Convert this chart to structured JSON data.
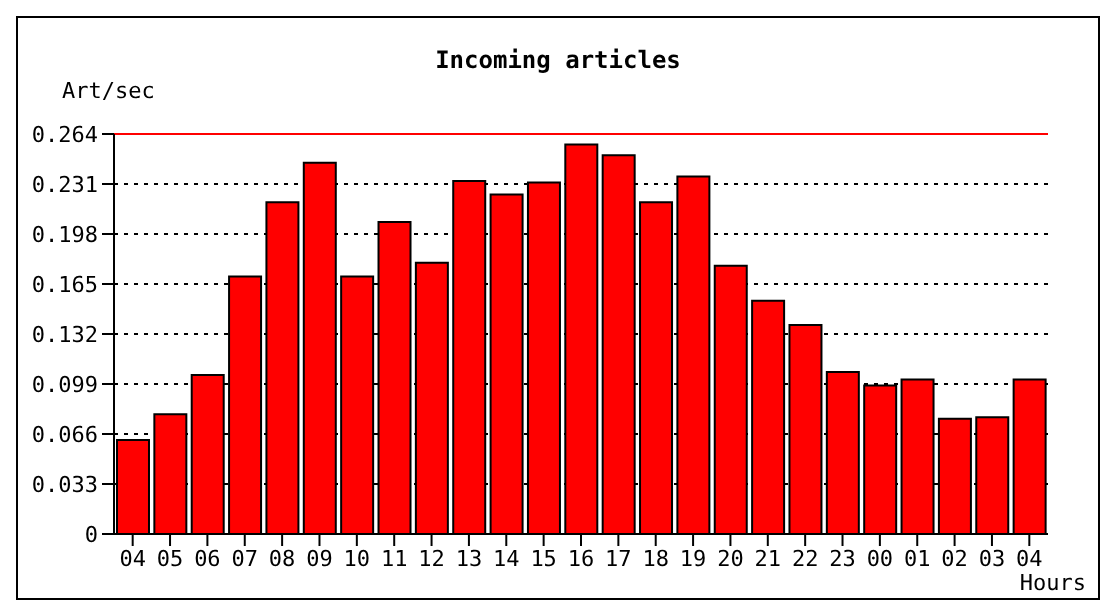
{
  "chart_data": {
    "type": "bar",
    "title": "Incoming articles",
    "ylabel": "Art/sec",
    "xlabel": "Hours",
    "categories": [
      "04",
      "05",
      "06",
      "07",
      "08",
      "09",
      "10",
      "11",
      "12",
      "13",
      "14",
      "15",
      "16",
      "17",
      "18",
      "19",
      "20",
      "21",
      "22",
      "23",
      "00",
      "01",
      "02",
      "03",
      "04"
    ],
    "values": [
      0.062,
      0.079,
      0.105,
      0.17,
      0.219,
      0.245,
      0.17,
      0.206,
      0.179,
      0.233,
      0.224,
      0.232,
      0.257,
      0.25,
      0.219,
      0.236,
      0.177,
      0.154,
      0.138,
      0.107,
      0.098,
      0.102,
      0.076,
      0.077,
      0.102
    ],
    "color": "#ff0000",
    "ylim": [
      0,
      0.264
    ],
    "yticks": [
      {
        "value": 0,
        "label": "0"
      },
      0.033,
      0.066,
      0.099,
      0.132,
      0.165,
      0.198,
      0.231,
      0.264
    ],
    "grid": "y",
    "ref_lines": [
      {
        "axis": "y",
        "value": 0.264,
        "color": "#ff0000"
      }
    ]
  }
}
